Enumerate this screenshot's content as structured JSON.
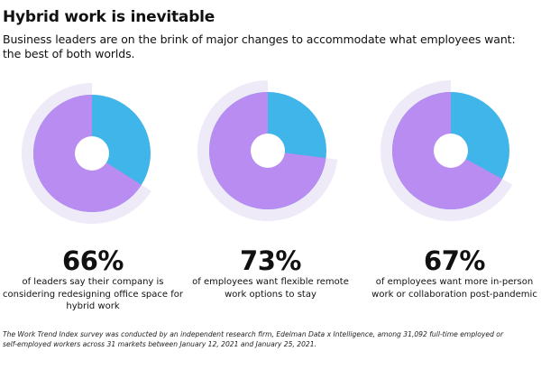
{
  "title": "Hybrid work is inevitable",
  "subtitle": "Business leaders are on the brink of major changes to accommodate what employees want: the best of both worlds.",
  "colors": {
    "fill": "#B88CF0",
    "remainder": "#3FB5EA",
    "halo": "#EEEAF8",
    "text": "#111111"
  },
  "chart_data": [
    {
      "type": "pie",
      "value": 66,
      "unit": "%",
      "label": "66%",
      "description": "of leaders say their company is considering redesigning office space for hybrid work"
    },
    {
      "type": "pie",
      "value": 73,
      "unit": "%",
      "label": "73%",
      "description": "of employees want flexible remote work options to stay"
    },
    {
      "type": "pie",
      "value": 67,
      "unit": "%",
      "label": "67%",
      "description": "of employees want more in-person work or collaboration post-pandemic"
    }
  ],
  "footnote": "The Work Trend Index survey was conducted by an independent research firm, Edelman Data x Intelligence, among 31,092 full-time employed or self-employed workers across 31 markets between January 12, 2021 and January 25, 2021."
}
